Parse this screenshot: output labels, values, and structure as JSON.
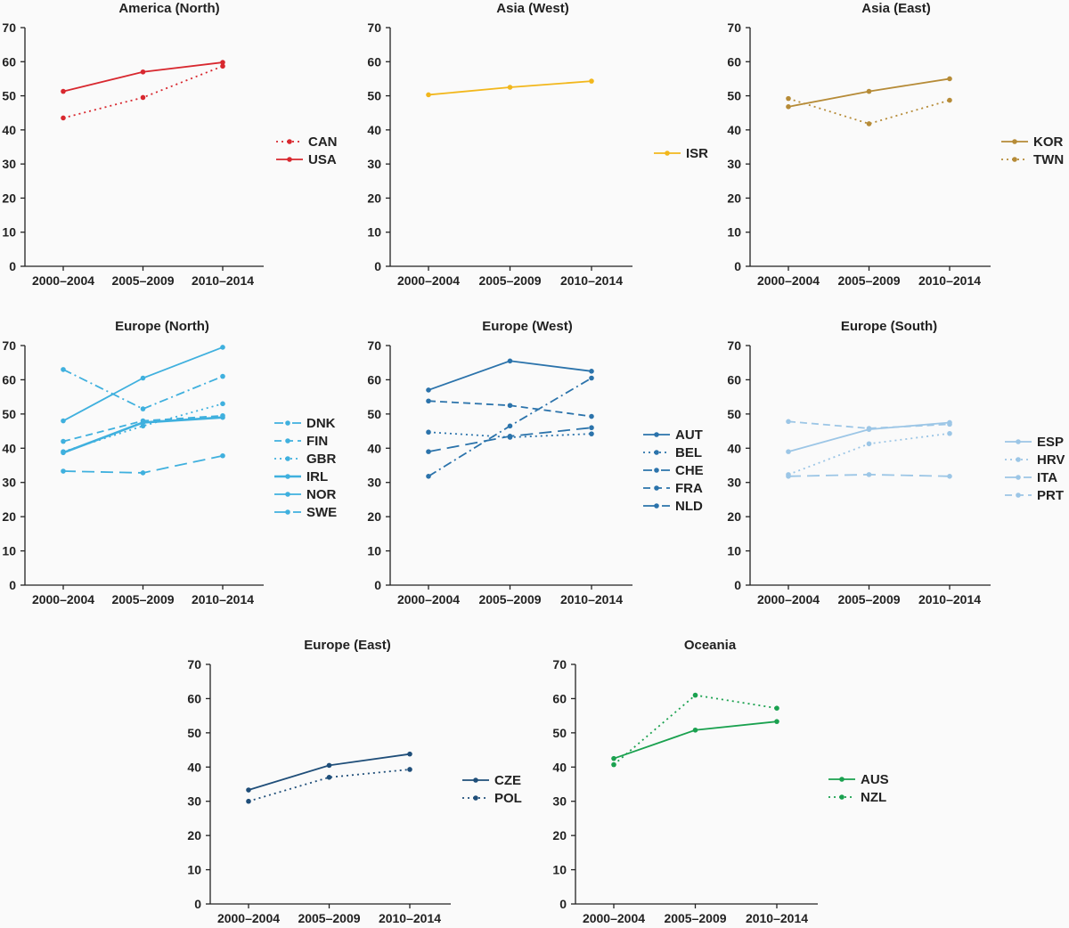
{
  "chart_data": [
    {
      "type": "line",
      "title": "America (North)",
      "color": "#d8282f",
      "categories": [
        "2000–2004",
        "2005–2009",
        "2010–2014"
      ],
      "yticks": [
        0,
        10,
        20,
        30,
        40,
        50,
        60,
        70
      ],
      "ylim": [
        0,
        70
      ],
      "legend_position": "right",
      "series": [
        {
          "name": "CAN",
          "dash": "dotted",
          "values": [
            43.5,
            49.5,
            58.7
          ]
        },
        {
          "name": "USA",
          "dash": "solid",
          "values": [
            51.3,
            57,
            59.8
          ]
        }
      ]
    },
    {
      "type": "line",
      "title": "Asia (West)",
      "color": "#f2b71c",
      "categories": [
        "2000–2004",
        "2005–2009",
        "2010–2014"
      ],
      "yticks": [
        0,
        10,
        20,
        30,
        40,
        50,
        60,
        70
      ],
      "ylim": [
        0,
        70
      ],
      "legend_position": "right",
      "series": [
        {
          "name": "ISR",
          "dash": "solid",
          "values": [
            50.3,
            52.5,
            54.3
          ]
        }
      ]
    },
    {
      "type": "line",
      "title": "Asia (East)",
      "color": "#b68b37",
      "categories": [
        "2000–2004",
        "2005–2009",
        "2010–2014"
      ],
      "yticks": [
        0,
        10,
        20,
        30,
        40,
        50,
        60,
        70
      ],
      "ylim": [
        0,
        70
      ],
      "legend_position": "right",
      "series": [
        {
          "name": "KOR",
          "dash": "solid",
          "values": [
            46.8,
            51.3,
            55
          ]
        },
        {
          "name": "TWN",
          "dash": "dotted",
          "values": [
            49.2,
            41.8,
            48.7
          ]
        }
      ]
    },
    {
      "type": "line",
      "title": "Europe (North)",
      "color": "#3fb0de",
      "categories": [
        "2000–2004",
        "2005–2009",
        "2010–2014"
      ],
      "yticks": [
        0,
        10,
        20,
        30,
        40,
        50,
        60,
        70
      ],
      "ylim": [
        0,
        70
      ],
      "legend_position": "right",
      "series": [
        {
          "name": "DNK",
          "dash": "dashdot",
          "values": [
            63,
            51.5,
            61
          ]
        },
        {
          "name": "FIN",
          "dash": "dashed",
          "values": [
            42,
            48,
            49.5
          ]
        },
        {
          "name": "GBR",
          "dash": "dotted",
          "values": [
            39,
            46.5,
            53
          ]
        },
        {
          "name": "IRL",
          "dash": "solid-thick",
          "values": [
            38.7,
            47.5,
            49
          ]
        },
        {
          "name": "NOR",
          "dash": "solid",
          "values": [
            48,
            60.5,
            69.5
          ]
        },
        {
          "name": "SWE",
          "dash": "longdash",
          "values": [
            33.3,
            32.8,
            37.8
          ]
        }
      ]
    },
    {
      "type": "line",
      "title": "Europe (West)",
      "color": "#2b73ab",
      "categories": [
        "2000–2004",
        "2005–2009",
        "2010–2014"
      ],
      "yticks": [
        0,
        10,
        20,
        30,
        40,
        50,
        60,
        70
      ],
      "ylim": [
        0,
        70
      ],
      "legend_position": "right",
      "series": [
        {
          "name": "AUT",
          "dash": "solid",
          "values": [
            57,
            65.5,
            62.5
          ]
        },
        {
          "name": "BEL",
          "dash": "dotted",
          "values": [
            44.7,
            43.2,
            44.2
          ]
        },
        {
          "name": "CHE",
          "dash": "dashdot",
          "values": [
            31.8,
            46.5,
            60.5
          ]
        },
        {
          "name": "FRA",
          "dash": "dashed",
          "values": [
            53.8,
            52.5,
            49.3
          ]
        },
        {
          "name": "NLD",
          "dash": "longdash",
          "values": [
            39,
            43.5,
            46
          ]
        }
      ]
    },
    {
      "type": "line",
      "title": "Europe (South)",
      "color": "#9cc6e6",
      "categories": [
        "2000–2004",
        "2005–2009",
        "2010–2014"
      ],
      "yticks": [
        0,
        10,
        20,
        30,
        40,
        50,
        60,
        70
      ],
      "ylim": [
        0,
        70
      ],
      "legend_position": "right",
      "series": [
        {
          "name": "ESP",
          "dash": "solid",
          "values": [
            39,
            45.5,
            47.5
          ]
        },
        {
          "name": "HRV",
          "dash": "dotted",
          "values": [
            32.3,
            41.3,
            44.3
          ]
        },
        {
          "name": "ITA",
          "dash": "longdash",
          "values": [
            31.8,
            32.3,
            31.8
          ]
        },
        {
          "name": "PRT",
          "dash": "dashed",
          "values": [
            47.8,
            45.8,
            47
          ]
        }
      ]
    },
    {
      "type": "line",
      "title": "Europe (East)",
      "color": "#1f4e79",
      "categories": [
        "2000–2004",
        "2005–2009",
        "2010–2014"
      ],
      "yticks": [
        0,
        10,
        20,
        30,
        40,
        50,
        60,
        70
      ],
      "ylim": [
        0,
        70
      ],
      "legend_position": "right",
      "series": [
        {
          "name": "CZE",
          "dash": "solid",
          "values": [
            33.3,
            40.5,
            43.8
          ]
        },
        {
          "name": "POL",
          "dash": "dotted",
          "values": [
            30,
            37,
            39.3
          ]
        }
      ]
    },
    {
      "type": "line",
      "title": "Oceania",
      "color": "#1aa14f",
      "categories": [
        "2000–2004",
        "2005–2009",
        "2010–2014"
      ],
      "yticks": [
        0,
        10,
        20,
        30,
        40,
        50,
        60,
        70
      ],
      "ylim": [
        0,
        70
      ],
      "legend_position": "right",
      "series": [
        {
          "name": "AUS",
          "dash": "solid",
          "values": [
            42.5,
            50.8,
            53.3
          ]
        },
        {
          "name": "NZL",
          "dash": "dotted",
          "values": [
            40.7,
            61,
            57.2
          ]
        }
      ]
    }
  ]
}
